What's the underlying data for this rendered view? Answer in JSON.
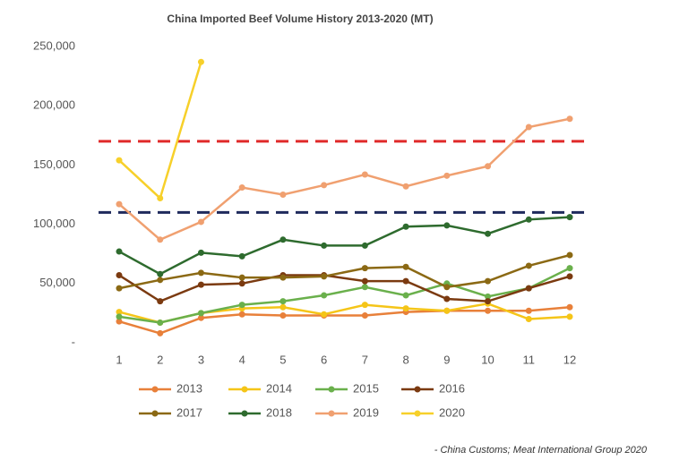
{
  "chart_data": {
    "type": "line",
    "title": "China Imported Beef Volume History 2013-2020 (MT)",
    "source": "- China Customs; Meat International Group 2020",
    "categories": [
      "1",
      "2",
      "3",
      "4",
      "5",
      "6",
      "7",
      "8",
      "9",
      "10",
      "11",
      "12"
    ],
    "ylim": [
      0,
      250000
    ],
    "yticks": [
      {
        "value": 0,
        "label": "-"
      },
      {
        "value": 50000,
        "label": "50,000"
      },
      {
        "value": 100000,
        "label": "100,000"
      },
      {
        "value": 150000,
        "label": "150,000"
      },
      {
        "value": 200000,
        "label": "200,000"
      },
      {
        "value": 250000,
        "label": "250,000"
      }
    ],
    "reference_lines": [
      {
        "value": 170000,
        "color": "#e02a2a"
      },
      {
        "value": 110000,
        "color": "#1f2a5c"
      }
    ],
    "series": [
      {
        "name": "2013",
        "color": "#e8803a",
        "values": [
          18000,
          8000,
          21000,
          24000,
          23000,
          23000,
          23000,
          26000,
          27000,
          27000,
          27000,
          30000
        ]
      },
      {
        "name": "2014",
        "color": "#f5c518",
        "values": [
          26000,
          17000,
          25000,
          29000,
          30000,
          24000,
          32000,
          29000,
          27000,
          33000,
          20000,
          22000
        ]
      },
      {
        "name": "2015",
        "color": "#6ab04c",
        "values": [
          22000,
          17000,
          25000,
          32000,
          35000,
          40000,
          47000,
          40000,
          50000,
          39000,
          46000,
          63000
        ]
      },
      {
        "name": "2016",
        "color": "#7b3a10",
        "values": [
          57000,
          35000,
          49000,
          50000,
          57000,
          57000,
          52000,
          52000,
          37000,
          35000,
          46000,
          56000
        ]
      },
      {
        "name": "2017",
        "color": "#8b6914",
        "values": [
          46000,
          53000,
          59000,
          55000,
          55000,
          56000,
          63000,
          64000,
          47000,
          52000,
          65000,
          74000
        ]
      },
      {
        "name": "2018",
        "color": "#2e6b2e",
        "values": [
          77000,
          58000,
          76000,
          73000,
          87000,
          82000,
          82000,
          98000,
          99000,
          92000,
          104000,
          106000
        ]
      },
      {
        "name": "2019",
        "color": "#f0a070",
        "values": [
          117000,
          87000,
          102000,
          131000,
          125000,
          133000,
          142000,
          132000,
          141000,
          149000,
          182000,
          189000
        ]
      },
      {
        "name": "2020",
        "color": "#f7d02a",
        "values": [
          154000,
          122000,
          237000,
          null,
          null,
          null,
          null,
          null,
          null,
          null,
          null,
          null
        ]
      }
    ]
  }
}
